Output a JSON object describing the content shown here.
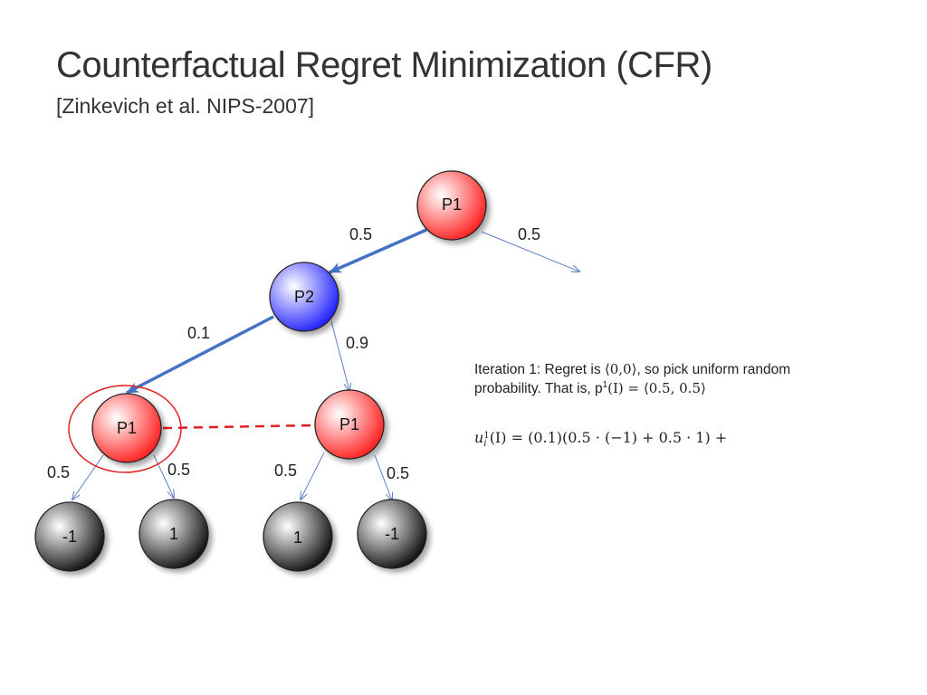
{
  "slide": {
    "title": "Counterfactual Regret Minimization (CFR)",
    "subtitle": "[Zinkevich et al. NIPS-2007]"
  },
  "tree": {
    "nodes": {
      "root": "P1",
      "p2": "P2",
      "p1_left": "P1",
      "p1_right": "P1",
      "leaf_1": "-1",
      "leaf_2": "1",
      "leaf_3": "1",
      "leaf_4": "-1"
    },
    "edges": {
      "root_left": "0.5",
      "root_right": "0.5",
      "p2_left": "0.1",
      "p2_right": "0.9",
      "p1l_left": "0.5",
      "p1l_right": "0.5",
      "p1r_left": "0.5",
      "p1r_right": "0.5"
    },
    "colors": {
      "player1": "#ff2a2a",
      "player2": "#2a2aff",
      "terminal": "#222222",
      "highlight_edge": "#4472c4",
      "info_set": "#e02020"
    }
  },
  "annotation": {
    "line1_prefix": "Iteration 1: Regret is ",
    "line1_regret": "⟨0,0⟩",
    "line1_suffix": ", so pick uniform random",
    "line2_prefix": "probability. That is, p",
    "line2_sup": "1",
    "line2_math": "(I) = ⟨0.5, 0.5⟩",
    "utility_base": "u",
    "utility_sup": "1",
    "utility_sub": "i",
    "utility_rest": "(I) = (0.1)(0.5 · (−1) + 0.5 · 1) +"
  }
}
